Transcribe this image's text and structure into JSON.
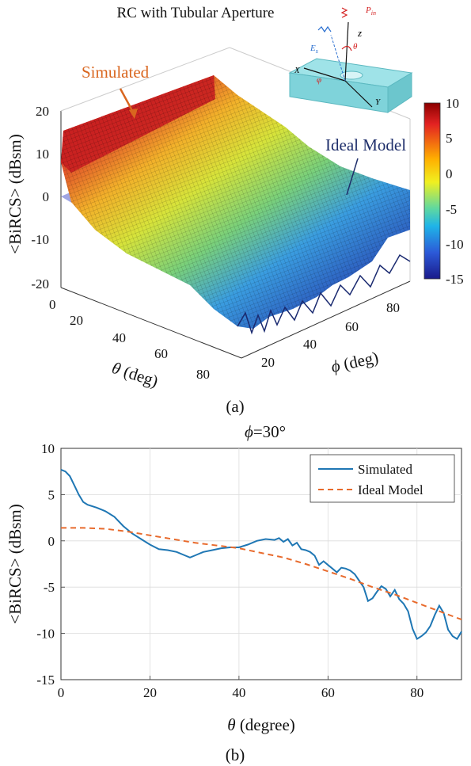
{
  "figure_a": {
    "title": "RC with Tubular Aperture",
    "caption": "(a)",
    "zlabel": "<BiRCS> (dBsm)",
    "xlabel_symbol": "θ",
    "xlabel_unit": " (deg)",
    "ylabel_symbol": "ϕ",
    "ylabel_unit": " (deg)",
    "annotations": {
      "simulated": "Simulated",
      "ideal": "Ideal Model"
    },
    "colorbar": {
      "ticks": [
        "10",
        "5",
        "0",
        "-5",
        "-10",
        "-15"
      ],
      "range": [
        -15,
        10
      ],
      "colormap": "jet"
    },
    "z_ticks": [
      "20",
      "10",
      "0",
      "-10",
      "-20"
    ],
    "theta_ticks": [
      "0",
      "20",
      "40",
      "60",
      "80"
    ],
    "phi_ticks": [
      "20",
      "40",
      "60",
      "80"
    ],
    "inset": {
      "z": "z",
      "x": "X",
      "y": "Y",
      "theta": "θ",
      "phi": "φ",
      "e": "E",
      "e_sub": "s",
      "p": "P",
      "p_sub": "in"
    },
    "colors": {
      "simulated_label": "#d9661f",
      "ideal_label": "#1f2f6b",
      "ideal_surface": "#7f86d8",
      "inset_box": "#8fdbe0"
    }
  },
  "figure_b": {
    "caption": "(b)",
    "title_symbol": "ϕ",
    "title_value": "=30°",
    "ylabel": "<BiRCS> (dBsm)",
    "xlabel_symbol": "θ",
    "xlabel_unit": " (degree)",
    "x_ticks": [
      "0",
      "20",
      "40",
      "60",
      "80"
    ],
    "y_ticks": [
      "10",
      "5",
      "0",
      "-5",
      "-10",
      "-15"
    ],
    "legend": [
      "Simulated",
      "Ideal Model"
    ],
    "colors": {
      "simulated": "#1f77b4",
      "ideal": "#e86a2c"
    }
  },
  "chart_data": [
    {
      "type": "surface",
      "title": "RC with Tubular Aperture",
      "xlabel": "θ (deg)",
      "ylabel": "ϕ (deg)",
      "zlabel": "<BiRCS> (dBsm)",
      "x_range": [
        0,
        90
      ],
      "y_range": [
        0,
        90
      ],
      "zlim": [
        -20,
        20
      ],
      "colorbar_range": [
        -15,
        10
      ],
      "series": [
        {
          "name": "Simulated",
          "description_values": {
            "theta_0_z": 8,
            "theta_90_z": -12
          }
        },
        {
          "name": "Ideal Model",
          "description_values": {
            "theta_0_z": 1.5,
            "theta_90_z": -8.5
          }
        }
      ]
    },
    {
      "type": "line",
      "title": "ϕ=30°",
      "xlabel": "θ (degree)",
      "ylabel": "<BiRCS> (dBsm)",
      "xlim": [
        0,
        90
      ],
      "ylim": [
        -15,
        10
      ],
      "grid": true,
      "legend_position": "top-right",
      "series": [
        {
          "name": "Simulated",
          "style": "solid",
          "x": [
            0,
            1,
            2,
            3,
            4,
            5,
            6,
            8,
            10,
            12,
            14,
            16,
            18,
            20,
            22,
            24,
            26,
            28,
            29,
            30,
            32,
            34,
            36,
            38,
            40,
            42,
            44,
            46,
            48,
            49,
            50,
            51,
            52,
            53,
            54,
            55,
            56,
            57,
            58,
            59,
            60,
            61,
            62,
            63,
            64,
            65,
            66,
            67,
            68,
            69,
            70,
            71,
            72,
            73,
            74,
            75,
            76,
            77,
            78,
            79,
            80,
            81,
            82,
            83,
            84,
            85,
            86,
            87,
            88,
            89,
            90
          ],
          "y": [
            7.7,
            7.5,
            7.0,
            6.0,
            5.0,
            4.2,
            3.9,
            3.6,
            3.2,
            2.6,
            1.6,
            0.8,
            0.2,
            -0.4,
            -0.9,
            -1.0,
            -1.2,
            -1.6,
            -1.8,
            -1.6,
            -1.2,
            -1.0,
            -0.8,
            -0.7,
            -0.7,
            -0.4,
            0.0,
            0.2,
            0.1,
            0.3,
            -0.1,
            0.2,
            -0.5,
            -0.2,
            -0.9,
            -1.0,
            -1.2,
            -1.6,
            -2.6,
            -2.2,
            -2.6,
            -3.0,
            -3.4,
            -2.9,
            -3.0,
            -3.2,
            -3.6,
            -4.3,
            -5.0,
            -6.5,
            -6.2,
            -5.5,
            -4.9,
            -5.2,
            -6.0,
            -5.3,
            -6.3,
            -6.8,
            -7.6,
            -9.5,
            -10.6,
            -10.3,
            -9.9,
            -9.2,
            -8.0,
            -7.0,
            -7.8,
            -9.6,
            -10.3,
            -10.6,
            -9.8
          ]
        },
        {
          "name": "Ideal Model",
          "style": "dashed",
          "x": [
            0,
            5,
            10,
            15,
            20,
            25,
            30,
            35,
            40,
            45,
            50,
            55,
            60,
            65,
            70,
            75,
            80,
            85,
            90
          ],
          "y": [
            1.4,
            1.4,
            1.3,
            1.0,
            0.6,
            0.2,
            -0.2,
            -0.5,
            -0.8,
            -1.3,
            -1.8,
            -2.5,
            -3.3,
            -4.1,
            -5.0,
            -5.8,
            -6.7,
            -7.6,
            -8.5
          ]
        }
      ]
    }
  ]
}
